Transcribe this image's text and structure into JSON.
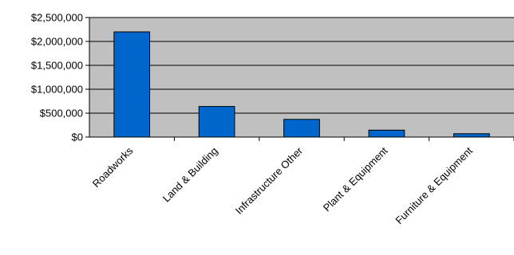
{
  "chart_data": {
    "type": "bar",
    "title": "",
    "xlabel": "",
    "ylabel": "",
    "categories": [
      "Roadworks",
      "Land & Building",
      "Infrastructure Other",
      "Plant & Equipment",
      "Furniture & Equipment"
    ],
    "values": [
      2200000,
      640000,
      370000,
      145000,
      70000
    ],
    "ylim": [
      0,
      2500000
    ],
    "yticks": [
      0,
      500000,
      1000000,
      1500000,
      2000000,
      2500000
    ],
    "ytick_labels": [
      "$0",
      "$500,000",
      "$1,000,000",
      "$1,500,000",
      "$2,000,000",
      "$2,500,000"
    ],
    "grid": true,
    "legend": "none",
    "colors": {
      "plot_background": "#c0c0c0",
      "bar_fill": "#0066cc",
      "bar_stroke": "#000000",
      "gridline": "#000000"
    }
  }
}
